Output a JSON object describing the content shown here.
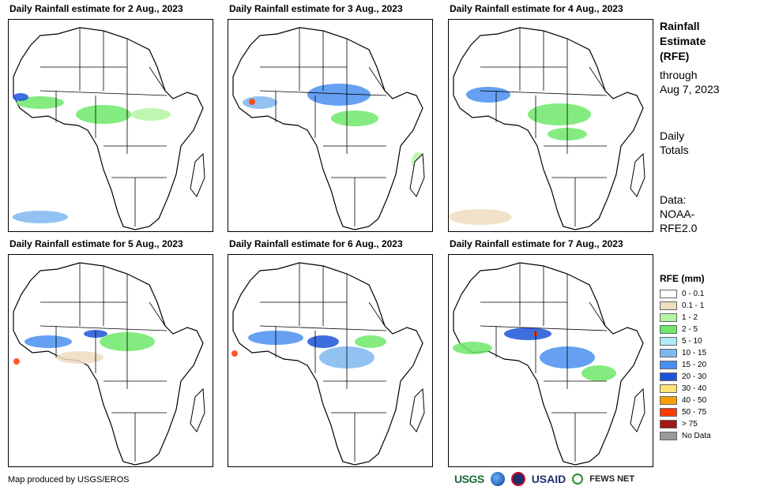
{
  "panels": [
    {
      "title": "Daily Rainfall estimate for 2 Aug., 2023"
    },
    {
      "title": "Daily Rainfall estimate for 3 Aug., 2023"
    },
    {
      "title": "Daily Rainfall estimate for 4 Aug., 2023"
    },
    {
      "title": "Daily Rainfall estimate for 5 Aug., 2023"
    },
    {
      "title": "Daily Rainfall estimate for 6 Aug., 2023"
    },
    {
      "title": "Daily Rainfall estimate for 7 Aug., 2023"
    }
  ],
  "sidebar": {
    "title_lines": [
      "Rainfall",
      "Estimate",
      "(RFE)"
    ],
    "through_lines": [
      "through",
      "Aug 7, 2023"
    ],
    "totals_lines": [
      "Daily",
      "Totals"
    ],
    "data_lines": [
      "Data:",
      "NOAA-",
      "RFE2.0"
    ]
  },
  "legend": {
    "title": "RFE (mm)",
    "items": [
      {
        "label": "0 - 0.1",
        "color": "#ffffff"
      },
      {
        "label": "0.1 - 1",
        "color": "#eedcc0"
      },
      {
        "label": "1 - 2",
        "color": "#b4f5a4"
      },
      {
        "label": "2 - 5",
        "color": "#6fe86b"
      },
      {
        "label": "5 - 10",
        "color": "#b0ecf5"
      },
      {
        "label": "10 - 15",
        "color": "#7fb7f0"
      },
      {
        "label": "15 - 20",
        "color": "#4a8ff0"
      },
      {
        "label": "20 - 30",
        "color": "#1c55d8"
      },
      {
        "label": "30 - 40",
        "color": "#ffe27a"
      },
      {
        "label": "40 - 50",
        "color": "#f5a000"
      },
      {
        "label": "50 - 75",
        "color": "#ff3c00"
      },
      {
        "label": "> 75",
        "color": "#a01818"
      },
      {
        "label": "No Data",
        "color": "#999999"
      }
    ]
  },
  "footer": {
    "credit": "Map produced by USGS/EROS",
    "logos": {
      "usgs": "USGS",
      "usaid": "USAID",
      "fews": "FEWS NET"
    }
  }
}
